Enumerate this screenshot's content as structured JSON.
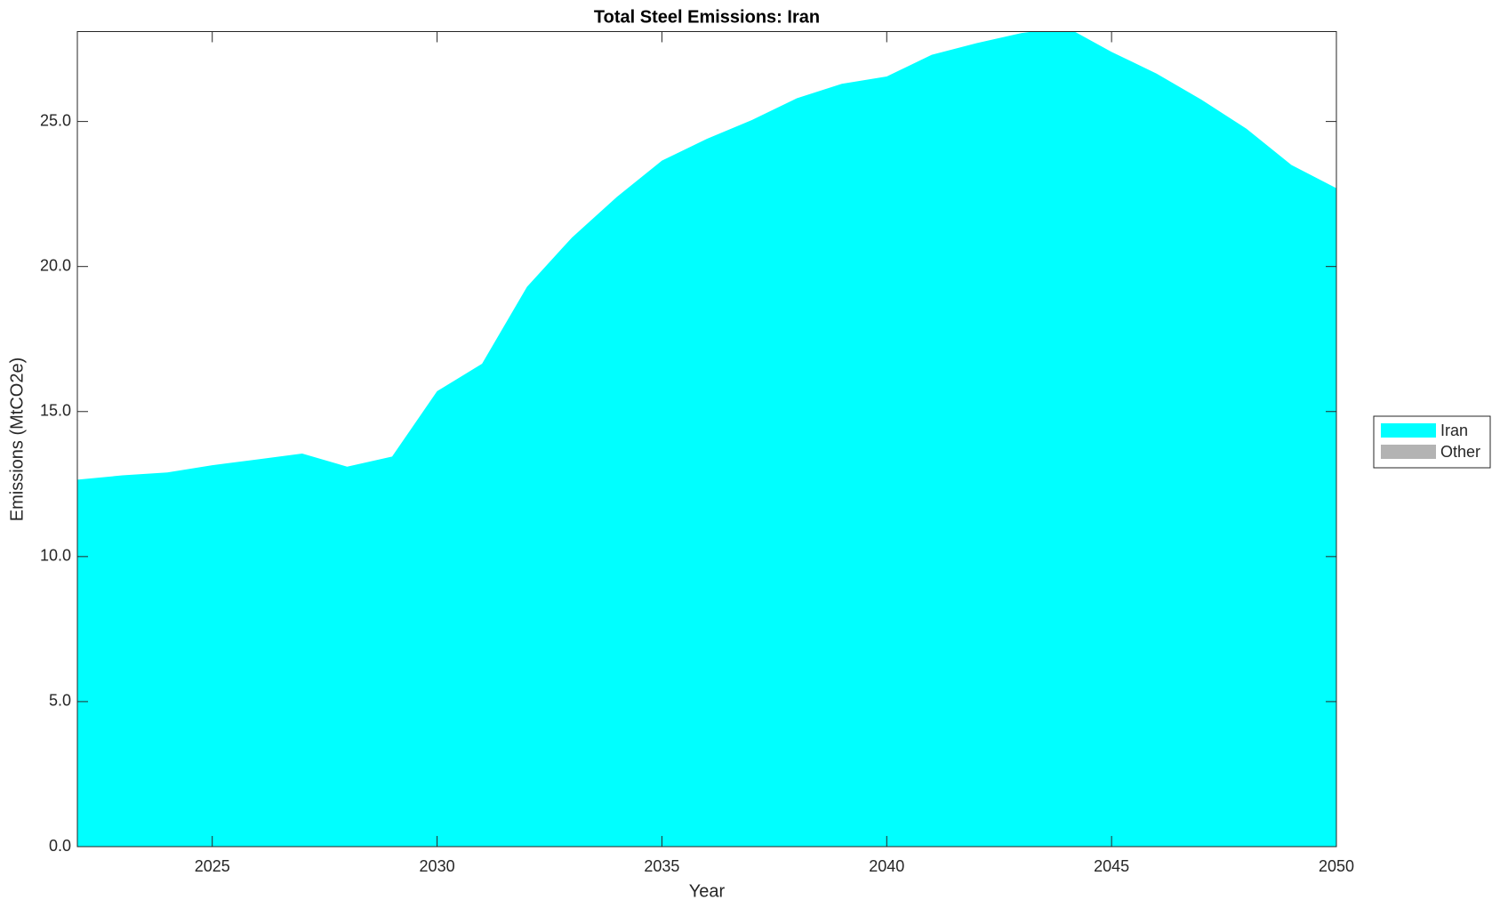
{
  "chart_data": {
    "type": "area",
    "title": "Total Steel Emissions: Iran",
    "xlabel": "Year",
    "ylabel": "Emissions (MtCO2e)",
    "x": [
      2022,
      2023,
      2024,
      2025,
      2026,
      2027,
      2028,
      2029,
      2030,
      2031,
      2032,
      2033,
      2034,
      2035,
      2036,
      2037,
      2038,
      2039,
      2040,
      2041,
      2042,
      2043,
      2044,
      2045,
      2046,
      2047,
      2048,
      2049,
      2050
    ],
    "series": [
      {
        "name": "Iran",
        "color": "#00ffff",
        "values": [
          12.65,
          12.8,
          12.9,
          13.15,
          13.35,
          13.55,
          13.1,
          13.45,
          15.7,
          16.65,
          19.3,
          21.0,
          22.4,
          23.65,
          24.4,
          25.05,
          25.8,
          26.3,
          26.55,
          27.3,
          27.7,
          28.05,
          28.25,
          27.4,
          26.65,
          25.75,
          24.75,
          23.5,
          22.7
        ]
      },
      {
        "name": "Other",
        "color": "#b3b3b3",
        "values": [
          0,
          0,
          0,
          0,
          0,
          0,
          0,
          0,
          0,
          0,
          0,
          0,
          0,
          0,
          0,
          0,
          0,
          0,
          0,
          0,
          0,
          0,
          0,
          0,
          0,
          0,
          0,
          0,
          0
        ]
      }
    ],
    "stacked": true,
    "xlim": [
      2022,
      2050
    ],
    "xticks": [
      2025,
      2030,
      2035,
      2040,
      2045,
      2050
    ],
    "ylim": [
      0,
      28.1
    ],
    "yticks": [
      {
        "value": 0,
        "label": "0.0"
      },
      {
        "value": 5,
        "label": "5.0"
      },
      {
        "value": 10,
        "label": "10.0"
      },
      {
        "value": 15,
        "label": "15.0"
      },
      {
        "value": 20,
        "label": "20.0"
      },
      {
        "value": 25,
        "label": "25.0"
      }
    ],
    "legend": "outside-right"
  }
}
